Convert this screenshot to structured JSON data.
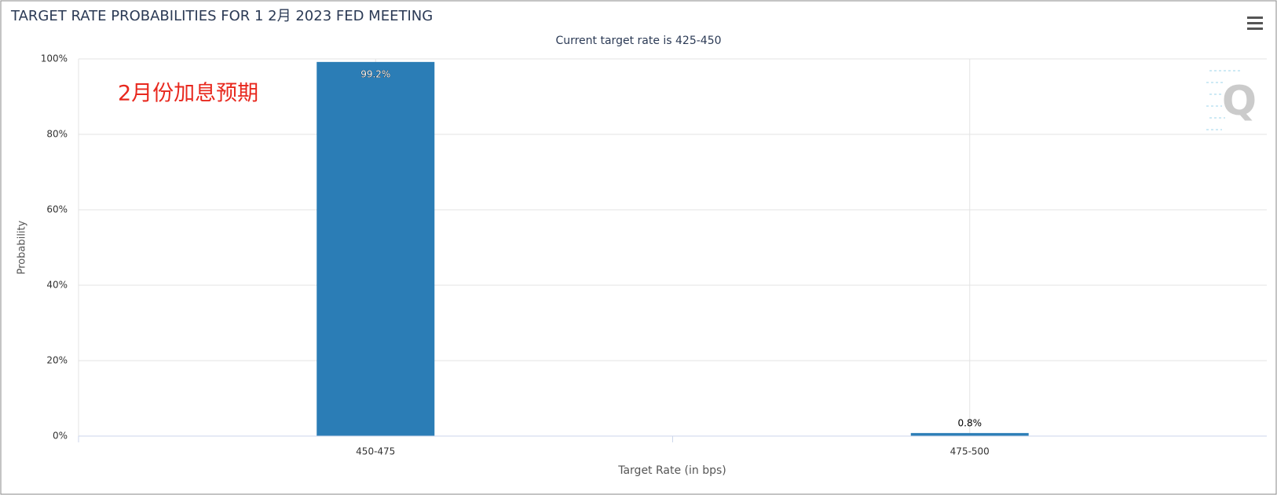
{
  "chart_data": {
    "type": "bar",
    "title": "TARGET RATE PROBABILITIES FOR 1 2月 2023 FED MEETING",
    "subtitle": "Current target rate is 425-450",
    "annotation": "2月份加息预期",
    "xlabel": "Target Rate (in bps)",
    "ylabel": "Probability",
    "categories": [
      "450-475",
      "475-500"
    ],
    "values": [
      99.2,
      0.8
    ],
    "value_labels": [
      "99.2%",
      "0.8%"
    ],
    "color": "#2b7db6",
    "ylim": [
      0,
      100
    ],
    "yticks": [
      {
        "value": 0,
        "label": "0%"
      },
      {
        "value": 20,
        "label": "20%"
      },
      {
        "value": 40,
        "label": "40%"
      },
      {
        "value": 60,
        "label": "60%"
      },
      {
        "value": 80,
        "label": "80%"
      },
      {
        "value": 100,
        "label": "100%"
      }
    ],
    "grid": true
  }
}
